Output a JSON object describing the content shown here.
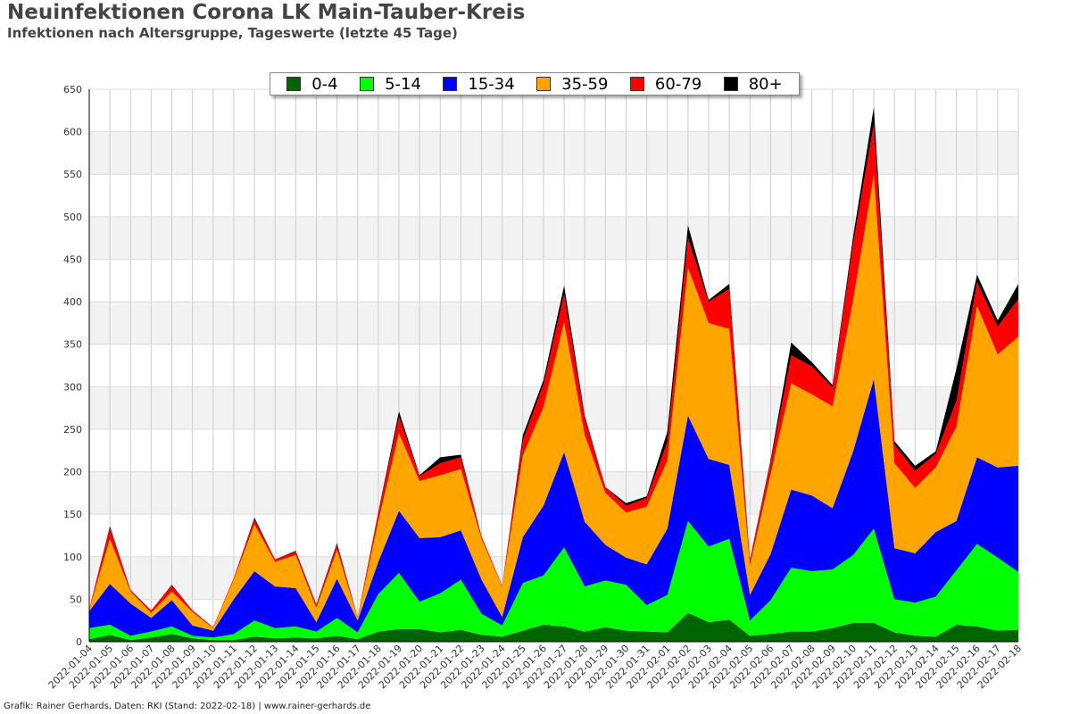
{
  "header": {
    "title": "Neuinfektionen Corona LK Main-Tauber-Kreis",
    "subtitle": "Infektionen nach Altersgruppe, Tageswerte (letzte 45 Tage)"
  },
  "footer": {
    "credit": "Grafik: Rainer Gerhards, Daten: RKI (Stand: 2022-02-18) | www.rainer-gerhards.de"
  },
  "chart_data": {
    "type": "area",
    "stacked": true,
    "x": [
      "2022-01-04",
      "2022-01-05",
      "2022-01-06",
      "2022-01-07",
      "2022-01-08",
      "2022-01-09",
      "2022-01-10",
      "2022-01-11",
      "2022-01-12",
      "2022-01-13",
      "2022-01-14",
      "2022-01-15",
      "2022-01-16",
      "2022-01-17",
      "2022-01-18",
      "2022-01-19",
      "2022-01-20",
      "2022-01-21",
      "2022-01-22",
      "2022-01-23",
      "2022-01-24",
      "2022-01-25",
      "2022-01-26",
      "2022-01-27",
      "2022-01-28",
      "2022-01-29",
      "2022-01-30",
      "2022-01-31",
      "2022-02-01",
      "2022-02-02",
      "2022-02-03",
      "2022-02-04",
      "2022-02-05",
      "2022-02-06",
      "2022-02-07",
      "2022-02-08",
      "2022-02-09",
      "2022-02-10",
      "2022-02-11",
      "2022-02-12",
      "2022-02-13",
      "2022-02-14",
      "2022-02-15",
      "2022-02-16",
      "2022-02-17",
      "2022-02-18"
    ],
    "series": [
      {
        "name": "0-4",
        "color": "#006400",
        "values": [
          3,
          8,
          2,
          5,
          9,
          4,
          2,
          2,
          6,
          4,
          5,
          4,
          7,
          3,
          12,
          15,
          15,
          11,
          14,
          8,
          6,
          13,
          20,
          18,
          12,
          17,
          13,
          12,
          11,
          34,
          23,
          26,
          7,
          9,
          12,
          12,
          16,
          22,
          22,
          11,
          7,
          6,
          20,
          18,
          13,
          14
        ]
      },
      {
        "name": "5-14",
        "color": "#00ff00",
        "values": [
          13,
          12,
          5,
          7,
          9,
          3,
          3,
          7,
          19,
          12,
          13,
          8,
          21,
          8,
          44,
          66,
          32,
          46,
          59,
          25,
          13,
          56,
          58,
          93,
          53,
          55,
          54,
          31,
          44,
          108,
          89,
          95,
          18,
          40,
          75,
          71,
          69,
          80,
          111,
          39,
          39,
          47,
          64,
          97,
          86,
          68
        ]
      },
      {
        "name": "15-34",
        "color": "#0000ff",
        "values": [
          20,
          48,
          38,
          16,
          31,
          12,
          8,
          41,
          58,
          49,
          45,
          11,
          46,
          14,
          38,
          73,
          75,
          66,
          58,
          40,
          10,
          54,
          82,
          112,
          76,
          42,
          32,
          48,
          78,
          124,
          103,
          87,
          30,
          54,
          92,
          89,
          72,
          122,
          176,
          60,
          58,
          76,
          58,
          102,
          106,
          125
        ]
      },
      {
        "name": "35-59",
        "color": "#ffa500",
        "values": [
          2,
          53,
          14,
          6,
          10,
          16,
          3,
          23,
          55,
          29,
          39,
          17,
          34,
          3,
          48,
          91,
          67,
          73,
          72,
          48,
          36,
          96,
          116,
          153,
          102,
          61,
          53,
          68,
          80,
          174,
          160,
          160,
          35,
          94,
          125,
          119,
          120,
          178,
          240,
          100,
          77,
          76,
          111,
          178,
          133,
          152
        ]
      },
      {
        "name": "60-79",
        "color": "#ff0000",
        "values": [
          1,
          13,
          2,
          3,
          7,
          2,
          1,
          2,
          6,
          3,
          4,
          3,
          6,
          1,
          10,
          20,
          6,
          14,
          14,
          3,
          1,
          18,
          27,
          33,
          20,
          7,
          8,
          10,
          22,
          35,
          25,
          47,
          6,
          14,
          33,
          33,
          22,
          67,
          60,
          22,
          20,
          16,
          30,
          28,
          33,
          44
        ]
      },
      {
        "name": "80+",
        "color": "#000000",
        "values": [
          0,
          2,
          0,
          0,
          1,
          0,
          0,
          0,
          2,
          0,
          1,
          1,
          2,
          0,
          1,
          6,
          1,
          7,
          3,
          0,
          0,
          6,
          5,
          10,
          3,
          0,
          3,
          2,
          12,
          15,
          2,
          6,
          1,
          3,
          15,
          5,
          3,
          8,
          20,
          4,
          6,
          3,
          38,
          9,
          7,
          18
        ]
      }
    ],
    "ylim": [
      0,
      650
    ],
    "yticks": [
      0,
      50,
      100,
      150,
      200,
      250,
      300,
      350,
      400,
      450,
      500,
      550,
      600,
      650
    ],
    "grid": true,
    "legend": "top-center"
  }
}
